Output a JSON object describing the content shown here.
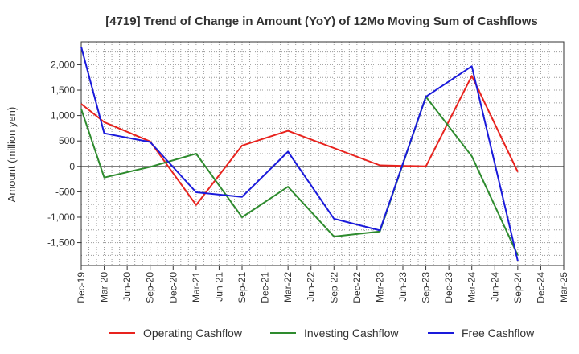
{
  "chart_data": {
    "type": "line",
    "title": "[4719]  Trend of Change in Amount (YoY) of 12Mo Moving Sum of Cashflows",
    "xlabel": "",
    "ylabel": "Amount (million yen)",
    "ylim": [
      -1950,
      2450
    ],
    "yticks": [
      2000,
      1500,
      1000,
      500,
      0,
      -500,
      -1000,
      -1500
    ],
    "ytick_labels": [
      "2,000",
      "1,500",
      "1,000",
      "500",
      "0",
      "-500",
      "-1,000",
      "-1,500"
    ],
    "categories": [
      "Dec-19",
      "Mar-20",
      "Jun-20",
      "Sep-20",
      "Dec-20",
      "Mar-21",
      "Jun-21",
      "Sep-21",
      "Dec-21",
      "Mar-22",
      "Jun-22",
      "Sep-22",
      "Dec-22",
      "Mar-23",
      "Jun-23",
      "Sep-23",
      "Dec-23",
      "Mar-24",
      "Jun-24",
      "Sep-24",
      "Dec-24",
      "Mar-25"
    ],
    "series": [
      {
        "name": "Operating Cashflow",
        "color": "#e8231e",
        "values": [
          1230,
          870,
          null,
          490,
          null,
          -760,
          null,
          410,
          null,
          700,
          null,
          null,
          null,
          20,
          null,
          0,
          null,
          1780,
          null,
          -110,
          null,
          null
        ]
      },
      {
        "name": "Investing Cashflow",
        "color": "#2e8b2e",
        "values": [
          1130,
          -220,
          null,
          -10,
          null,
          250,
          null,
          -1000,
          null,
          -400,
          null,
          -1380,
          null,
          -1280,
          null,
          1370,
          null,
          200,
          null,
          -1750,
          null,
          null
        ]
      },
      {
        "name": "Free Cashflow",
        "color": "#1a1adb",
        "values": [
          2350,
          650,
          null,
          480,
          null,
          -510,
          null,
          -600,
          null,
          290,
          null,
          -1030,
          null,
          -1260,
          null,
          1370,
          null,
          1970,
          null,
          -1860,
          null,
          null
        ]
      }
    ],
    "grid": true,
    "legend": "bottom"
  }
}
